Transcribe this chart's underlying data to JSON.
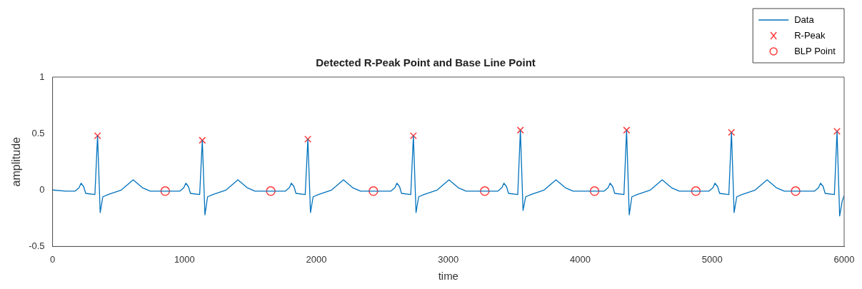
{
  "chart_data": {
    "type": "line",
    "title": "Detected R-Peak Point and Base Line Point",
    "xlabel": "time",
    "ylabel": "amplitude",
    "xlim": [
      0,
      6000
    ],
    "xticks": [
      0,
      1000,
      2000,
      3000,
      4000,
      5000,
      6000
    ],
    "ylim": [
      -0.5,
      1
    ],
    "yticks": [
      -0.5,
      0,
      0.5,
      1
    ],
    "grid": false,
    "legend": "top right",
    "series": [
      {
        "name": "Data",
        "type": "line",
        "color": "#0072bd",
        "marker": "none",
        "x": [
          0,
          100,
          171,
          201,
          216,
          236,
          251,
          321,
          341,
          361,
          381,
          421,
          521,
          611,
          681,
          741,
          965,
          995,
          1010,
          1030,
          1045,
          1115,
          1135,
          1155,
          1175,
          1215,
          1315,
          1405,
          1475,
          1535,
          1765,
          1795,
          1810,
          1830,
          1845,
          1915,
          1935,
          1955,
          1975,
          2015,
          2115,
          2205,
          2275,
          2335,
          2565,
          2595,
          2610,
          2630,
          2645,
          2715,
          2735,
          2755,
          2775,
          2815,
          2915,
          3005,
          3075,
          3135,
          3376,
          3406,
          3421,
          3441,
          3456,
          3526,
          3546,
          3566,
          3586,
          3626,
          3726,
          3816,
          3886,
          3946,
          4181,
          4211,
          4226,
          4246,
          4261,
          4331,
          4351,
          4371,
          4391,
          4431,
          4531,
          4621,
          4691,
          4751,
          4976,
          5006,
          5021,
          5041,
          5056,
          5126,
          5146,
          5166,
          5186,
          5226,
          5326,
          5416,
          5486,
          5546,
          5776,
          5806,
          5821,
          5841,
          5856,
          5926,
          5946,
          5966,
          5985,
          6000
        ],
        "values": [
          0,
          -0.01,
          -0.01,
          0.02,
          0.06,
          0.03,
          -0.03,
          -0.04,
          0.48,
          -0.2,
          -0.06,
          -0.04,
          0,
          0.09,
          0.02,
          -0.01,
          -0.01,
          0.02,
          0.06,
          0.03,
          -0.03,
          -0.04,
          0.44,
          -0.22,
          -0.06,
          -0.04,
          0,
          0.09,
          0.02,
          -0.01,
          -0.01,
          0.02,
          0.06,
          0.03,
          -0.03,
          -0.04,
          0.45,
          -0.2,
          -0.06,
          -0.04,
          0,
          0.09,
          0.02,
          -0.01,
          -0.01,
          0.02,
          0.06,
          0.03,
          -0.03,
          -0.04,
          0.48,
          -0.2,
          -0.06,
          -0.04,
          0,
          0.09,
          0.02,
          -0.01,
          -0.01,
          0.02,
          0.06,
          0.03,
          -0.03,
          -0.04,
          0.53,
          -0.18,
          -0.06,
          -0.04,
          0,
          0.09,
          0.02,
          -0.01,
          -0.01,
          0.02,
          0.06,
          0.03,
          -0.03,
          -0.04,
          0.53,
          -0.22,
          -0.06,
          -0.04,
          0,
          0.09,
          0.02,
          -0.01,
          -0.01,
          0.02,
          0.06,
          0.03,
          -0.03,
          -0.04,
          0.51,
          -0.2,
          -0.06,
          -0.04,
          0,
          0.09,
          0.02,
          -0.01,
          -0.01,
          0.02,
          0.06,
          0.03,
          -0.03,
          -0.04,
          0.52,
          -0.23,
          -0.1,
          -0.05
        ]
      },
      {
        "name": "R-Peak",
        "type": "scatter",
        "color": "#ff3b3b",
        "marker": "cross",
        "x": [
          341,
          1135,
          1935,
          2735,
          3546,
          4351,
          5146,
          5946
        ],
        "values": [
          0.48,
          0.44,
          0.45,
          0.48,
          0.53,
          0.53,
          0.51,
          0.52
        ]
      },
      {
        "name": "BLP Point",
        "type": "scatter",
        "color": "#ff3b3b",
        "marker": "circle",
        "x": [
          854,
          1654,
          2432,
          3276,
          4108,
          4876,
          5632
        ],
        "values": [
          -0.01,
          -0.01,
          -0.01,
          -0.01,
          -0.01,
          -0.01,
          -0.01
        ]
      }
    ]
  }
}
